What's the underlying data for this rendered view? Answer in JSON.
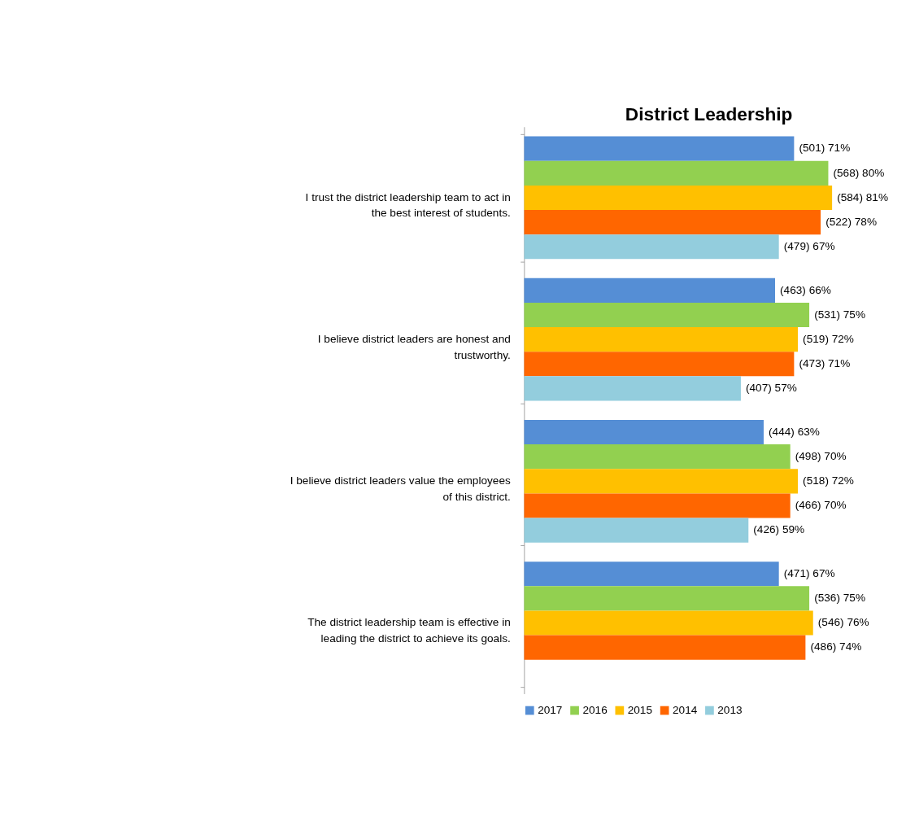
{
  "chart_data": {
    "type": "bar",
    "orientation": "horizontal",
    "title": "District Leadership",
    "categories": [
      "I trust the district leadership team to act in the best interest of students.",
      "I believe district leaders are honest and trustworthy.",
      "I believe district leaders value the employees of this district.",
      "The district leadership team is effective in leading the district to achieve its goals."
    ],
    "series": [
      {
        "name": "2017",
        "color": "#558ed5",
        "values": [
          71,
          66,
          63,
          67
        ],
        "value_labels": [
          "(501) 71%",
          "(463) 66%",
          "(444) 63%",
          "(471) 67%"
        ]
      },
      {
        "name": "2016",
        "color": "#92d050",
        "values": [
          80,
          75,
          70,
          75
        ],
        "value_labels": [
          "(568) 80%",
          "(531) 75%",
          "(498) 70%",
          "(536) 75%"
        ]
      },
      {
        "name": "2015",
        "color": "#ffc000",
        "values": [
          81,
          72,
          72,
          76
        ],
        "value_labels": [
          "(584) 81%",
          "(519) 72%",
          "(518) 72%",
          "(546) 76%"
        ]
      },
      {
        "name": "2014",
        "color": "#ff6600",
        "values": [
          78,
          71,
          70,
          74
        ],
        "value_labels": [
          "(522) 78%",
          "(473) 71%",
          "(466) 70%",
          "(486) 74%"
        ]
      },
      {
        "name": "2013",
        "color": "#93cddd",
        "values": [
          67,
          57,
          59,
          null
        ],
        "value_labels": [
          "(479) 67%",
          "(407) 57%",
          "(426) 59%",
          null
        ]
      }
    ],
    "legend": "bottom",
    "grid": false
  }
}
